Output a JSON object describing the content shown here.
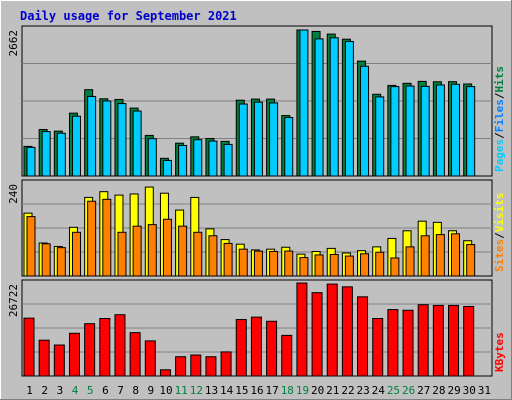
{
  "chart_data": {
    "type": "bar",
    "title": "Daily usage for September 2021",
    "categories": [
      "1",
      "2",
      "3",
      "4",
      "5",
      "6",
      "7",
      "8",
      "9",
      "10",
      "11",
      "12",
      "13",
      "14",
      "15",
      "16",
      "17",
      "18",
      "19",
      "20",
      "21",
      "22",
      "23",
      "24",
      "25",
      "26",
      "27",
      "28",
      "29",
      "30",
      "31"
    ],
    "weekend_days": [
      4,
      5,
      11,
      12,
      18,
      19,
      25,
      26
    ],
    "panels": [
      {
        "name": "hits-files-pages",
        "ymax_label": "2662",
        "ymax": 2662,
        "legend": [
          "Pages",
          "/",
          "Files",
          "/",
          "Hits"
        ],
        "series": [
          {
            "name": "Hits",
            "color": "#008040",
            "values": [
              540,
              848,
              818,
              1146,
              1574,
              1408,
              1396,
              1238,
              740,
              322,
              598,
              714,
              684,
              632,
              1382,
              1402,
              1402,
              1102,
              2662,
              2636,
              2587,
              2494,
              2094,
              1490,
              1652,
              1690,
              1725,
              1718,
              1720,
              1678,
              0
            ]
          },
          {
            "name": "Files",
            "color": "#00ccff",
            "values": [
              522,
              810,
              780,
              1090,
              1450,
              1368,
              1320,
              1184,
              680,
              284,
              556,
              662,
              636,
              576,
              1312,
              1346,
              1332,
              1066,
              2662,
              2500,
              2520,
              2452,
              2000,
              1442,
              1630,
              1640,
              1634,
              1660,
              1672,
              1630,
              0
            ]
          },
          {
            "name": "Pages",
            "color": "#00ccff",
            "values": [
              0,
              0,
              0,
              0,
              0,
              0,
              0,
              0,
              0,
              0,
              0,
              0,
              0,
              0,
              0,
              0,
              0,
              0,
              0,
              0,
              0,
              0,
              0,
              0,
              0,
              0,
              0,
              0,
              0,
              0,
              0
            ]
          }
        ]
      },
      {
        "name": "visits-sites",
        "ymax_label": "240",
        "ymax": 240,
        "legend": [
          "Sites",
          "/",
          "Visits"
        ],
        "series": [
          {
            "name": "Visits",
            "color": "#ffff00",
            "values": [
              164,
              86,
              77,
              127,
              205,
              220,
              211,
              214,
              232,
              216,
              172,
              205,
              123,
              95,
              83,
              68,
              70,
              75,
              57,
              64,
              72,
              60,
              66,
              76,
              98,
              118,
              143,
              140,
              118,
              92,
              0
            ]
          },
          {
            "name": "Sites",
            "color": "#ff8000",
            "values": [
              155,
              84,
              74,
              114,
              195,
              200,
              114,
              130,
              134,
              148,
              130,
              114,
              105,
              85,
              70,
              65,
              64,
              65,
              48,
              55,
              56,
              52,
              58,
              62,
              47,
              76,
              105,
              108,
              110,
              82,
              0
            ]
          }
        ]
      },
      {
        "name": "kbytes",
        "ymax_label": "26722",
        "ymax": 26722,
        "legend": [
          "KBytes"
        ],
        "series": [
          {
            "name": "KBytes",
            "color": "#ff0000",
            "values": [
              16800,
              10400,
              9000,
              12400,
              15200,
              16700,
              17800,
              12600,
              10200,
              1800,
              5600,
              6100,
              5600,
              7000,
              16400,
              17100,
              15900,
              11800,
              27000,
              24200,
              26700,
              25900,
              23000,
              16700,
              19300,
              19100,
              20700,
              20500,
              20500,
              20200,
              0
            ]
          }
        ]
      }
    ]
  }
}
